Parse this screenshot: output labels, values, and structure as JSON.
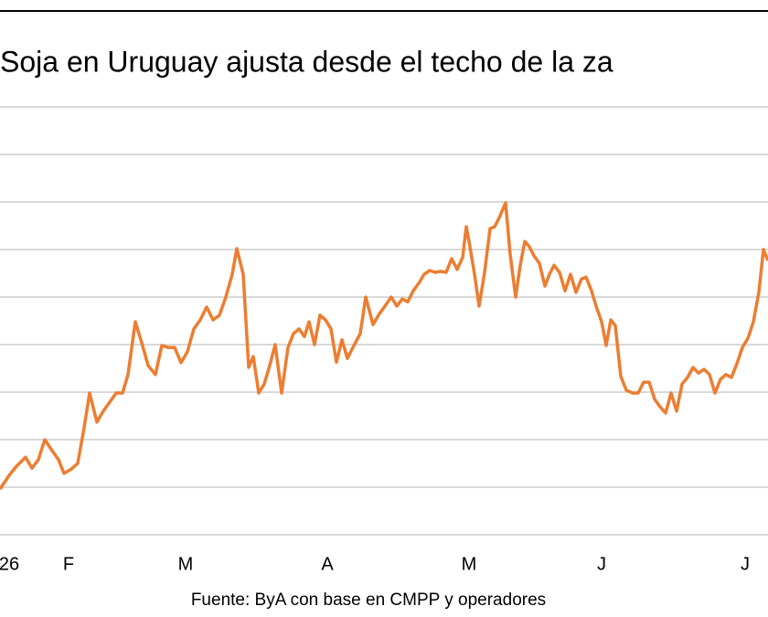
{
  "chart_data": {
    "type": "line",
    "title": "Soja en Uruguay ajusta desde el techo de la za",
    "source": "Fuente: ByA con base en CMPP y operadores",
    "xlim": [
      0,
      168
    ],
    "xticks": [
      {
        "value": 2,
        "label": "26"
      },
      {
        "value": 15,
        "label": "F"
      },
      {
        "value": 40.6,
        "label": "M"
      },
      {
        "value": 71.6,
        "label": "A"
      },
      {
        "value": 102.6,
        "label": "M"
      },
      {
        "value": 131.6,
        "label": "J"
      },
      {
        "value": 163,
        "label": "J"
      }
    ],
    "ylim": [
      0,
      9
    ],
    "gridlines": [
      0,
      1,
      2,
      3,
      4,
      5,
      6,
      7,
      8,
      9
    ],
    "grid": true,
    "x": [
      0,
      2,
      3.6,
      5.6,
      7,
      8.4,
      9.8,
      11.4,
      12.8,
      14,
      15.6,
      17,
      18.4,
      19.6,
      21.2,
      22.6,
      24,
      25.4,
      26.8,
      28,
      29.6,
      31,
      32.4,
      34,
      35.4,
      36.8,
      38.2,
      39.6,
      41,
      42.4,
      43.8,
      45.2,
      46.6,
      48,
      49.4,
      50.8,
      51.8,
      53.2,
      54.4,
      55.4,
      56.6,
      57.8,
      59,
      60.2,
      61.6,
      63,
      64.2,
      65.4,
      66.6,
      67.6,
      68.8,
      70,
      71.2,
      72.4,
      73.6,
      74.8,
      76,
      77.2,
      78.8,
      80,
      81.6,
      82.8,
      84.2,
      85.6,
      86.8,
      88,
      89.2,
      90.4,
      91.6,
      92.8,
      94,
      95.2,
      96.4,
      97.6,
      98.8,
      100,
      101.2,
      102,
      102.8,
      103.8,
      104.8,
      106,
      107.2,
      108.2,
      109.2,
      110.6,
      111.6,
      112.8,
      113.8,
      114.8,
      115.8,
      116.8,
      118,
      119.2,
      120.2,
      121.2,
      122.4,
      123.6,
      124.8,
      126,
      127.2,
      128.2,
      129.4,
      130.4,
      131.6,
      132.6,
      133.6,
      134.6,
      135.8,
      137,
      138.4,
      139.6,
      140.8,
      142,
      143.2,
      144.4,
      145.6,
      146.8,
      148,
      149.2,
      150.4,
      151.6,
      152.8,
      154,
      155.2,
      156.4,
      157.6,
      158.8,
      160,
      161.2,
      162.4,
      163.6,
      164.8,
      166,
      167,
      168
    ],
    "series": [
      {
        "color": "#ed7d31",
        "values": [
          0.96,
          1.25,
          1.44,
          1.63,
          1.4,
          1.58,
          2.0,
          1.77,
          1.58,
          1.29,
          1.38,
          1.5,
          2.25,
          2.98,
          2.37,
          2.6,
          2.79,
          2.98,
          2.98,
          3.37,
          4.48,
          4.04,
          3.56,
          3.37,
          3.98,
          3.94,
          3.94,
          3.62,
          3.85,
          4.33,
          4.52,
          4.79,
          4.52,
          4.62,
          5.0,
          5.48,
          6.02,
          5.48,
          3.52,
          3.75,
          2.98,
          3.17,
          3.56,
          4.0,
          2.98,
          3.94,
          4.23,
          4.33,
          4.17,
          4.48,
          4.0,
          4.62,
          4.52,
          4.33,
          3.63,
          4.1,
          3.71,
          3.94,
          4.23,
          5.0,
          4.42,
          4.62,
          4.81,
          5.0,
          4.81,
          4.96,
          4.9,
          5.13,
          5.29,
          5.48,
          5.56,
          5.52,
          5.54,
          5.52,
          5.81,
          5.58,
          5.83,
          6.48,
          6.06,
          5.48,
          4.81,
          5.52,
          6.44,
          6.48,
          6.67,
          6.98,
          5.9,
          5.0,
          5.67,
          6.17,
          6.06,
          5.87,
          5.71,
          5.23,
          5.48,
          5.67,
          5.52,
          5.13,
          5.48,
          5.1,
          5.38,
          5.42,
          5.13,
          4.81,
          4.48,
          3.98,
          4.52,
          4.4,
          3.33,
          3.04,
          2.98,
          2.98,
          3.21,
          3.21,
          2.85,
          2.69,
          2.56,
          2.98,
          2.6,
          3.17,
          3.31,
          3.52,
          3.4,
          3.48,
          3.37,
          2.98,
          3.27,
          3.37,
          3.31,
          3.6,
          3.94,
          4.13,
          4.48,
          5.1,
          6.0,
          5.77
        ]
      }
    ]
  }
}
